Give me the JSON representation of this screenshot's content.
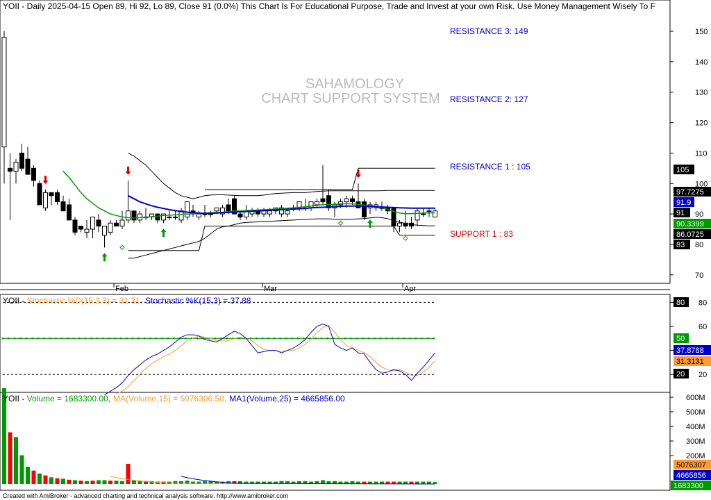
{
  "header": {
    "ticker": "YOII",
    "info": "YOII - Daily 2025-04-15 Open 89, Hi 92, Lo 89, Close 91 (0.0%)  This Chart Is For Educational Purpose, Trade and Invest at your own Risk. Use Money Management Wisely To F"
  },
  "watermark": {
    "line1": "SAHAMOLOGY",
    "line2": "CHART SUPPORT SYSTEM"
  },
  "levels": {
    "r3": {
      "label": "RESISTANCE 3: 149",
      "value": 149
    },
    "r2": {
      "label": "RESISTANCE 2: 127",
      "value": 127
    },
    "r1": {
      "label": "RESISTANCE 1 : 105",
      "value": 105
    },
    "s1": {
      "label": "SUPPORT 1 : 83",
      "value": 83
    }
  },
  "axis_tags": {
    "t105": "105",
    "t97": "97.7275",
    "t91_9": "91.9",
    "t91": "91",
    "t90": "90.3399",
    "t86": "86.0725",
    "t83": "83",
    "st80": "80",
    "st50": "50",
    "stk": "37.8788",
    "std": "31.3131",
    "st20": "20",
    "vma15": "5076307",
    "vma25": "4665856",
    "vol": "1683300"
  },
  "stoch_title": {
    "ticker": "YOII - ",
    "d": "Stochastic %D(15,3,3) = 31.31,",
    "k": "Stochastic %K(15,3) = 37.88"
  },
  "vol_title": {
    "ticker": "YOII - ",
    "vol": "Volume = 1683300.00,",
    "ma15": "MA(Volume,15) = 5076306.50,",
    "ma25": "MA1(Volume,25) = 4665856.00"
  },
  "footer": "Created with AmiBroker - advanced charting and technical analysis software. http://www.amibroker.com",
  "colors": {
    "up": "#ffffff",
    "down": "#000000",
    "ma_green": "#009900",
    "ma_blue": "#0000cc",
    "resist": "#0000cc",
    "support": "#dd0000",
    "stoch_k": "#0000cc",
    "stoch_d": "#ff9933"
  },
  "chart_data": {
    "type": "candlestick",
    "price_axis_ticks": [
      70,
      80,
      90,
      100,
      110,
      120,
      130,
      140,
      150
    ],
    "stoch_axis_ticks": [
      20,
      40,
      60,
      80
    ],
    "volume_axis_ticks": [
      "200M",
      "300M",
      "400M",
      "500M",
      "600M"
    ],
    "date_labels": [
      "Feb",
      "Mar",
      "Apr"
    ],
    "candles": [
      {
        "o": 112,
        "h": 150,
        "l": 100,
        "c": 148
      },
      {
        "o": 105,
        "h": 110,
        "l": 88,
        "c": 104
      },
      {
        "o": 104,
        "h": 108,
        "l": 100,
        "c": 107
      },
      {
        "o": 110,
        "h": 113,
        "l": 104,
        "c": 105
      },
      {
        "o": 108,
        "h": 112,
        "l": 103,
        "c": 103
      },
      {
        "o": 105,
        "h": 106,
        "l": 99,
        "c": 101
      },
      {
        "o": 100,
        "h": 101,
        "l": 93,
        "c": 93
      },
      {
        "o": 92,
        "h": 98,
        "l": 91,
        "c": 97
      },
      {
        "o": 97,
        "h": 97,
        "l": 93,
        "c": 96
      },
      {
        "o": 97,
        "h": 98,
        "l": 93,
        "c": 94
      },
      {
        "o": 94,
        "h": 96,
        "l": 91,
        "c": 91
      },
      {
        "o": 93,
        "h": 95,
        "l": 88,
        "c": 88
      },
      {
        "o": 88,
        "h": 89,
        "l": 83,
        "c": 84
      },
      {
        "o": 86,
        "h": 86,
        "l": 84,
        "c": 85
      },
      {
        "o": 84,
        "h": 88,
        "l": 82,
        "c": 85
      },
      {
        "o": 85,
        "h": 89,
        "l": 82,
        "c": 89
      },
      {
        "o": 88,
        "h": 90,
        "l": 84,
        "c": 86
      },
      {
        "o": 83,
        "h": 86,
        "l": 79,
        "c": 86
      },
      {
        "o": 84,
        "h": 88,
        "l": 83,
        "c": 87
      },
      {
        "o": 87,
        "h": 88,
        "l": 86,
        "c": 86
      },
      {
        "o": 86,
        "h": 91,
        "l": 85,
        "c": 88
      },
      {
        "o": 88,
        "h": 101,
        "l": 87,
        "c": 91
      },
      {
        "o": 91,
        "h": 91,
        "l": 87,
        "c": 88
      },
      {
        "o": 88,
        "h": 91,
        "l": 87,
        "c": 90
      },
      {
        "o": 89,
        "h": 92,
        "l": 88,
        "c": 89
      },
      {
        "o": 89,
        "h": 90,
        "l": 88,
        "c": 90
      },
      {
        "o": 90,
        "h": 90,
        "l": 87,
        "c": 88
      },
      {
        "o": 88,
        "h": 90,
        "l": 87,
        "c": 90
      },
      {
        "o": 89,
        "h": 91,
        "l": 88,
        "c": 89
      },
      {
        "o": 89,
        "h": 91,
        "l": 88,
        "c": 89
      },
      {
        "o": 88,
        "h": 92,
        "l": 87,
        "c": 91
      },
      {
        "o": 89,
        "h": 94,
        "l": 88,
        "c": 94
      },
      {
        "o": 91,
        "h": 93,
        "l": 89,
        "c": 90
      },
      {
        "o": 89,
        "h": 91,
        "l": 88,
        "c": 90
      },
      {
        "o": 90,
        "h": 93,
        "l": 89,
        "c": 90
      },
      {
        "o": 90,
        "h": 91,
        "l": 89,
        "c": 90
      },
      {
        "o": 91,
        "h": 92,
        "l": 90,
        "c": 92
      },
      {
        "o": 90,
        "h": 93,
        "l": 89,
        "c": 92
      },
      {
        "o": 93,
        "h": 95,
        "l": 90,
        "c": 91
      },
      {
        "o": 95,
        "h": 96,
        "l": 90,
        "c": 90
      },
      {
        "o": 90,
        "h": 91,
        "l": 88,
        "c": 89
      },
      {
        "o": 89,
        "h": 93,
        "l": 88,
        "c": 91
      },
      {
        "o": 90,
        "h": 92,
        "l": 89,
        "c": 91
      },
      {
        "o": 91,
        "h": 92,
        "l": 89,
        "c": 90
      },
      {
        "o": 90,
        "h": 92,
        "l": 89,
        "c": 91
      },
      {
        "o": 90,
        "h": 92,
        "l": 89,
        "c": 91
      },
      {
        "o": 91,
        "h": 92,
        "l": 90,
        "c": 92
      },
      {
        "o": 90,
        "h": 93,
        "l": 89,
        "c": 92
      },
      {
        "o": 90,
        "h": 92,
        "l": 89,
        "c": 91
      },
      {
        "o": 92,
        "h": 93,
        "l": 91,
        "c": 92
      },
      {
        "o": 92,
        "h": 94,
        "l": 91,
        "c": 94
      },
      {
        "o": 92,
        "h": 95,
        "l": 91,
        "c": 92
      },
      {
        "o": 92,
        "h": 94,
        "l": 91,
        "c": 94
      },
      {
        "o": 93,
        "h": 95,
        "l": 92,
        "c": 94
      },
      {
        "o": 95,
        "h": 106,
        "l": 93,
        "c": 94
      },
      {
        "o": 96,
        "h": 98,
        "l": 91,
        "c": 92
      },
      {
        "o": 92,
        "h": 94,
        "l": 89,
        "c": 93
      },
      {
        "o": 93,
        "h": 95,
        "l": 92,
        "c": 94
      },
      {
        "o": 94,
        "h": 96,
        "l": 92,
        "c": 95
      },
      {
        "o": 95,
        "h": 96,
        "l": 93,
        "c": 94
      },
      {
        "o": 94,
        "h": 100,
        "l": 92,
        "c": 92
      },
      {
        "o": 94,
        "h": 95,
        "l": 88,
        "c": 89
      },
      {
        "o": 92,
        "h": 94,
        "l": 90,
        "c": 93
      },
      {
        "o": 92,
        "h": 94,
        "l": 91,
        "c": 93
      },
      {
        "o": 92,
        "h": 94,
        "l": 91,
        "c": 92
      },
      {
        "o": 92,
        "h": 93,
        "l": 90,
        "c": 91
      },
      {
        "o": 92,
        "h": 92,
        "l": 84,
        "c": 86
      },
      {
        "o": 86,
        "h": 88,
        "l": 84,
        "c": 87
      },
      {
        "o": 87,
        "h": 91,
        "l": 85,
        "c": 86
      },
      {
        "o": 87,
        "h": 89,
        "l": 85,
        "c": 86
      },
      {
        "o": 88,
        "h": 92,
        "l": 86,
        "c": 91
      },
      {
        "o": 90,
        "h": 92,
        "l": 89,
        "c": 90
      },
      {
        "o": 91,
        "h": 92,
        "l": 89,
        "c": 91
      },
      {
        "o": 89,
        "h": 92,
        "l": 89,
        "c": 91
      }
    ],
    "ma_green": [
      null,
      null,
      null,
      null,
      null,
      null,
      null,
      null,
      null,
      null,
      104,
      102,
      99.5,
      97,
      95,
      93.5,
      92,
      91,
      90,
      89.5,
      89,
      88.8,
      88.7,
      88.8,
      88.9,
      89.1,
      89.3,
      89.5,
      89.6,
      89.7,
      89.8,
      90,
      90.1,
      90.2,
      90.3,
      90.4,
      90.5,
      90.6,
      90.8,
      91,
      91,
      91.1,
      91.2,
      91.3,
      91.4,
      91.5,
      91.6,
      91.7,
      91.9,
      92,
      92.2,
      92.4,
      92.6,
      92.8,
      93,
      93.1,
      93.2,
      93.3,
      93.4,
      93.3,
      93.1,
      92.9,
      92.6,
      92.3,
      92,
      91.5,
      90.8,
      90.3,
      90.1,
      90.1,
      90.2,
      90.3,
      90.34,
      90.34
    ],
    "ma_blue": [
      null,
      null,
      null,
      null,
      null,
      null,
      null,
      null,
      null,
      null,
      null,
      null,
      null,
      null,
      null,
      null,
      null,
      null,
      null,
      null,
      null,
      96,
      95,
      94,
      93.3,
      92.7,
      92.2,
      91.8,
      91.4,
      91.1,
      90.8,
      90.6,
      90.4,
      90.3,
      90.2,
      90.2,
      90.3,
      90.4,
      90.5,
      90.6,
      90.7,
      90.8,
      90.9,
      91,
      91.1,
      91.2,
      91.3,
      91.4,
      91.5,
      91.6,
      91.7,
      91.8,
      92,
      92.1,
      92.2,
      92.3,
      92.4,
      92.5,
      92.6,
      92.6,
      92.6,
      92.6,
      92.5,
      92.4,
      92.3,
      92.2,
      92.1,
      92,
      91.95,
      91.9,
      91.9,
      91.9,
      91.9,
      91.9
    ],
    "bb_upper": [
      null,
      null,
      null,
      null,
      null,
      null,
      null,
      null,
      null,
      null,
      null,
      null,
      null,
      null,
      null,
      null,
      null,
      null,
      null,
      null,
      null,
      110,
      109,
      107.5,
      106,
      104,
      102,
      100,
      98.5,
      97,
      96,
      95.5,
      95,
      95.5,
      96,
      96.2,
      96.3,
      96.3,
      96.2,
      96.1,
      96,
      96,
      96,
      96,
      96.2,
      96.5,
      96.7,
      96.8,
      96.9,
      97,
      97,
      97,
      97.2,
      97.4,
      97.5,
      97.6,
      97.6,
      97.6,
      97.6,
      97.6,
      97.6,
      97.6,
      97.6,
      97.6,
      97.65,
      97.7,
      97.7,
      97.7,
      97.72,
      97.72,
      97.72,
      97.7275,
      97.7275,
      97.7275
    ],
    "bb_lower": [
      null,
      null,
      null,
      null,
      null,
      null,
      null,
      null,
      null,
      null,
      null,
      null,
      null,
      null,
      null,
      null,
      null,
      null,
      null,
      null,
      null,
      75.5,
      75.5,
      76,
      76.5,
      77,
      77.5,
      78,
      78.5,
      79,
      79.5,
      80,
      80.5,
      81,
      82,
      83.5,
      85,
      85.8,
      86,
      86.5,
      87,
      87.2,
      87.3,
      87.4,
      87.5,
      87.6,
      87.7,
      87.8,
      87.9,
      88,
      88.1,
      88.2,
      88.3,
      88.4,
      88.4,
      88.4,
      88.3,
      88.2,
      88.2,
      88.3,
      88.4,
      88.5,
      88.7,
      88.9,
      88.8,
      88.4,
      87.8,
      87.3,
      86.9,
      86.5,
      86.3,
      86.2,
      86.1,
      86.0725
    ],
    "zone_upper": [
      {
        "i": 21,
        "v": null
      },
      {
        "i": 33,
        "v": null
      },
      {
        "i": 34,
        "v": 98
      },
      {
        "i": 59,
        "v": 98
      },
      {
        "i": 60,
        "v": 105
      },
      {
        "i": 73,
        "v": 105
      }
    ],
    "zone_lower": [
      {
        "i": 21,
        "v": 78
      },
      {
        "i": 33,
        "v": 78
      },
      {
        "i": 34,
        "v": 86
      },
      {
        "i": 59,
        "v": 86
      },
      {
        "i": 60,
        "v": 86
      },
      {
        "i": 66,
        "v": 86
      },
      {
        "i": 67,
        "v": 83
      },
      {
        "i": 73,
        "v": 83
      }
    ],
    "arrows_down": [
      7,
      21,
      60
    ],
    "arrows_up": [
      17,
      27,
      62
    ],
    "diamonds": [
      {
        "i": 20,
        "v": 79
      },
      {
        "i": 57,
        "v": 87
      },
      {
        "i": 68,
        "v": 82
      }
    ],
    "stoch_k": [
      null,
      null,
      null,
      null,
      null,
      null,
      null,
      null,
      null,
      null,
      null,
      null,
      null,
      null,
      null,
      null,
      null,
      3,
      6,
      9,
      13,
      19,
      24,
      28,
      32,
      35,
      37,
      40,
      43,
      47,
      51,
      53,
      53,
      52,
      49,
      48,
      47,
      50,
      53,
      56,
      54,
      50,
      44,
      38,
      39,
      40,
      40,
      38,
      40,
      42,
      45,
      49,
      55,
      60,
      62,
      60,
      45,
      42,
      40,
      42,
      38,
      37,
      30,
      24,
      21,
      22,
      24,
      23,
      20,
      15,
      21,
      26,
      32,
      37.88
    ],
    "stoch_d": [
      null,
      null,
      null,
      null,
      null,
      null,
      null,
      null,
      null,
      null,
      null,
      null,
      null,
      null,
      null,
      null,
      null,
      null,
      null,
      4,
      6,
      10,
      15,
      20,
      25,
      29,
      32,
      35,
      37,
      40,
      44,
      48,
      50,
      52,
      51,
      50,
      48,
      48,
      48,
      50,
      51,
      50,
      48,
      44,
      41,
      40,
      40,
      39,
      40,
      40,
      42,
      45,
      49,
      55,
      59,
      61,
      55,
      49,
      44,
      42,
      40,
      38,
      35,
      30,
      26,
      24,
      23,
      24,
      22,
      19,
      19,
      22,
      26,
      31.31
    ],
    "volume": [
      1000,
      540,
      490,
      300,
      180,
      140,
      110,
      90,
      70,
      60,
      55,
      45,
      40,
      35,
      30,
      35,
      40,
      40,
      35,
      35,
      30,
      210,
      40,
      35,
      30,
      30,
      25,
      25,
      25,
      30,
      30,
      35,
      25,
      25,
      30,
      30,
      25,
      25,
      30,
      30,
      30,
      25,
      25,
      25,
      25,
      25,
      25,
      30,
      30,
      25,
      30,
      30,
      25,
      30,
      40,
      30,
      30,
      25,
      25,
      30,
      25,
      25,
      25,
      25,
      25,
      25,
      25,
      25,
      25,
      25,
      25,
      25,
      25,
      20
    ],
    "volume_up": [
      true,
      false,
      true,
      true,
      true,
      false,
      true,
      false,
      true,
      false,
      true,
      false,
      true,
      false,
      true,
      false,
      true,
      true,
      false,
      true,
      true,
      false,
      true,
      true,
      false,
      true,
      true,
      false,
      true,
      true,
      true,
      true,
      true,
      true,
      true,
      true,
      true,
      true,
      true,
      false,
      true,
      true,
      true,
      true,
      true,
      true,
      true,
      true,
      true,
      true,
      true,
      true,
      true,
      true,
      true,
      true,
      true,
      true,
      true,
      true,
      true,
      false,
      true,
      true,
      true,
      false,
      false,
      true,
      true,
      false,
      true,
      true,
      true,
      true
    ],
    "vol_ma15": [
      null,
      null,
      null,
      null,
      null,
      null,
      null,
      null,
      null,
      null,
      null,
      null,
      null,
      null,
      null,
      null,
      null,
      null,
      null,
      null,
      null,
      null,
      null,
      null,
      null,
      null,
      null,
      null,
      null,
      null,
      null,
      null,
      null,
      null,
      null,
      null,
      null,
      null,
      null,
      null,
      null,
      null,
      null,
      null,
      null,
      null,
      null,
      null,
      null,
      null,
      null,
      null,
      null,
      null,
      null,
      null,
      null,
      null,
      null,
      null,
      null,
      null,
      null,
      null,
      null,
      null,
      null,
      null,
      null,
      null,
      null,
      null,
      null,
      null
    ],
    "vol_ma25": [
      null,
      null,
      null,
      null,
      null,
      null,
      null,
      null,
      null,
      null,
      null,
      null,
      null,
      null,
      null,
      null,
      null,
      null,
      null,
      null,
      null,
      null,
      null,
      null,
      null,
      null,
      null,
      null,
      null,
      null,
      null,
      null,
      null,
      null,
      null,
      null,
      null,
      null,
      null,
      null,
      null,
      null,
      null,
      null,
      null,
      null,
      null,
      null,
      null,
      null,
      null,
      null,
      null,
      null,
      null,
      null,
      null,
      null,
      null,
      null,
      null,
      null,
      null,
      null,
      null,
      null,
      null,
      null,
      null,
      null,
      null,
      null,
      null,
      null
    ]
  }
}
